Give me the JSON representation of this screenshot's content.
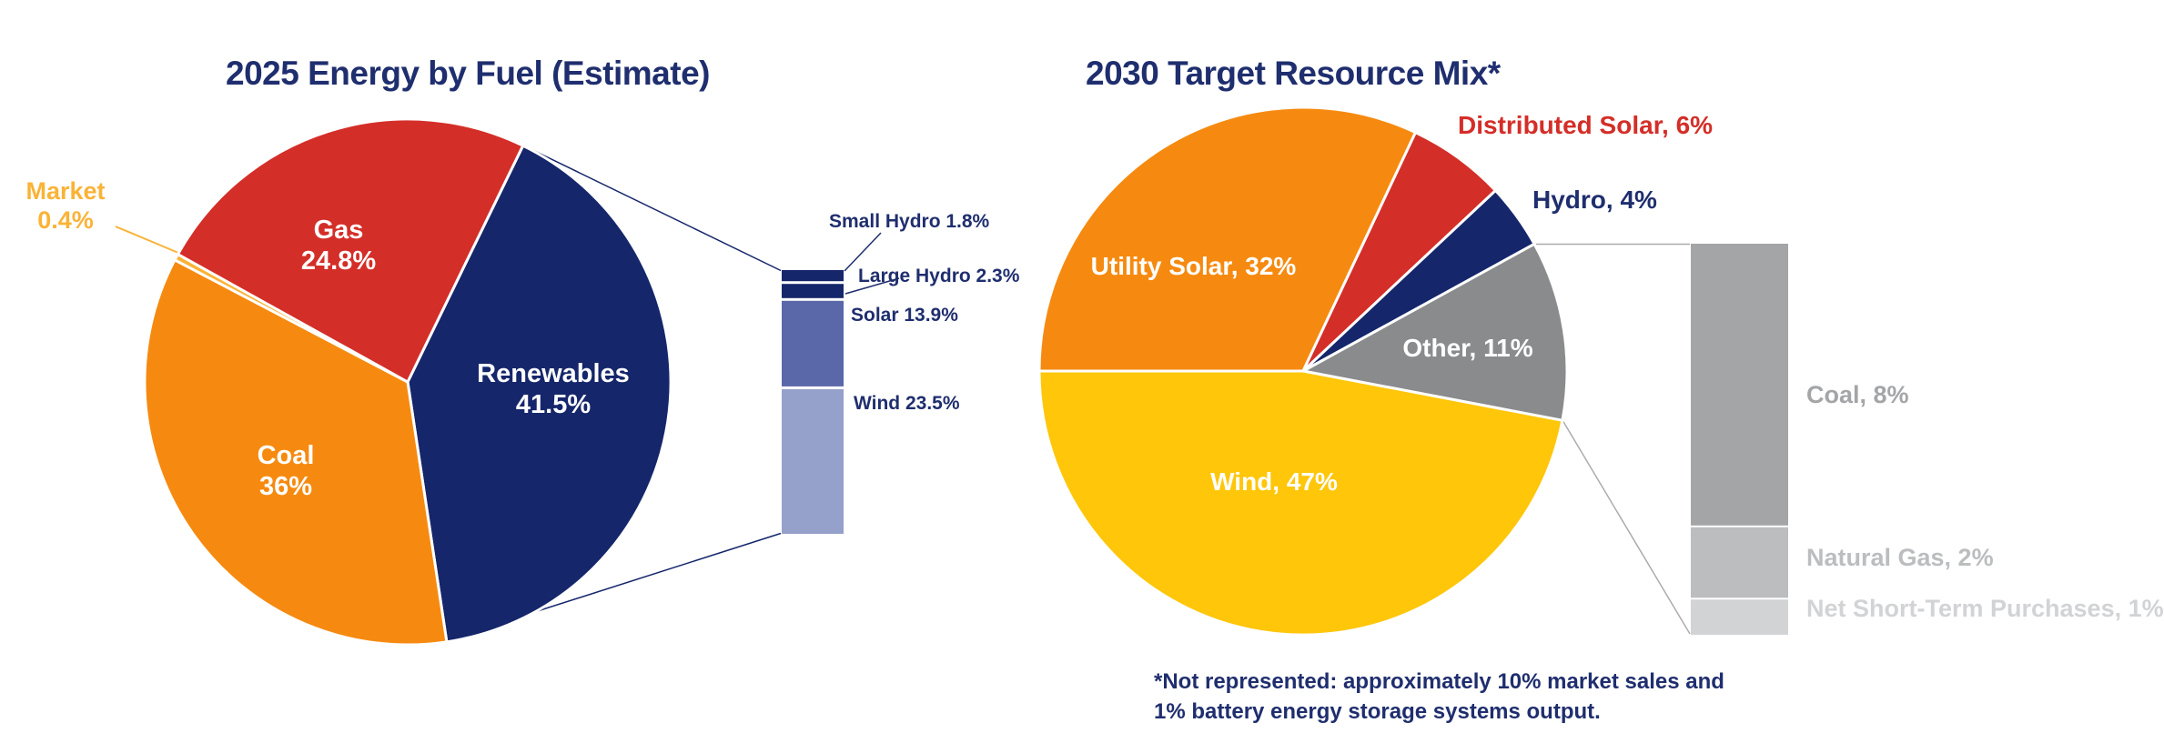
{
  "colors": {
    "navy_text": "#1F2E6E",
    "navy_slice": "#15266B",
    "red": "#D42E28",
    "orange": "#F68A10",
    "market_yellow": "#FAB337",
    "wind_yellow": "#FFC60A",
    "gray_slice": "#8A8B8D",
    "solar_bar_blue": "#5A67A9",
    "wind_bar_blue": "#95A0CB",
    "coal_gray": "#A4A5A7",
    "natural_gas_gray": "#BBBDBF",
    "net_purchases_gray": "#D2D3D5",
    "background": "#FFFFFF"
  },
  "footnote": {
    "line1": "*Not represented: approximately 10% market sales and",
    "line2": "1% battery energy storage systems output."
  },
  "chart_data": [
    {
      "id": "energy-2025-pie",
      "type": "pie",
      "title": "2025 Energy by Fuel (Estimate)",
      "start_angle_deg": 26,
      "legend_position": "labels-on-slices",
      "slices": [
        {
          "name": "Renewables",
          "value": 41.5,
          "value_label": "41.5%",
          "color": "#15266B",
          "text_color": "#FFFFFF"
        },
        {
          "name": "Coal",
          "value": 36,
          "value_label": "36%",
          "color": "#F68A10",
          "text_color": "#FFFFFF"
        },
        {
          "name": "Market",
          "value": 0.4,
          "value_label": "0.4%",
          "color": "#FAB337",
          "text_color": "#FAB337"
        },
        {
          "name": "Gas",
          "value": 24.8,
          "value_label": "24.8%",
          "color": "#D42E28",
          "text_color": "#FFFFFF"
        }
      ]
    },
    {
      "id": "renewables-breakdown-bar",
      "type": "bar",
      "subtype": "stacked-breakdown",
      "parent_slice": "Renewables",
      "segments": [
        {
          "name": "Small Hydro",
          "value": 1.8,
          "label": "Small Hydro 1.8%",
          "color": "#15266B"
        },
        {
          "name": "Large Hydro",
          "value": 2.3,
          "label": "Large Hydro 2.3%",
          "color": "#15266B"
        },
        {
          "name": "Solar",
          "value": 13.9,
          "label": "Solar 13.9%",
          "color": "#5A67A9"
        },
        {
          "name": "Wind",
          "value": 23.5,
          "label": "Wind 23.5%",
          "color": "#95A0CB"
        }
      ]
    },
    {
      "id": "target-2030-pie",
      "type": "pie",
      "title": "2030 Target Resource Mix*",
      "start_angle_deg": 270,
      "legend_position": "labels-on-slices",
      "slices": [
        {
          "name": "Utility Solar",
          "value": 32,
          "label": "Utility Solar, 32%",
          "color": "#F68A10",
          "text_color": "#FFFFFF"
        },
        {
          "name": "Distributed Solar",
          "value": 6,
          "label": "Distributed Solar, 6%",
          "color": "#D42E28",
          "text_color": "#D42E28"
        },
        {
          "name": "Hydro",
          "value": 4,
          "label": "Hydro, 4%",
          "color": "#15266B",
          "text_color": "#1F2E6E"
        },
        {
          "name": "Other",
          "value": 11,
          "label": "Other, 11%",
          "color": "#8A8B8D",
          "text_color": "#FFFFFF"
        },
        {
          "name": "Wind",
          "value": 47,
          "label": "Wind, 47%",
          "color": "#FFC60A",
          "text_color": "#FFFFFF"
        }
      ]
    },
    {
      "id": "other-breakdown-bar",
      "type": "bar",
      "subtype": "stacked-breakdown",
      "parent_slice": "Other",
      "segments": [
        {
          "name": "Coal",
          "value": 8,
          "label": "Coal, 8%",
          "color": "#A4A5A7"
        },
        {
          "name": "Natural Gas",
          "value": 2,
          "label": "Natural Gas, 2%",
          "color": "#BBBDBF"
        },
        {
          "name": "Net Short-Term Purchases",
          "value": 1,
          "label": "Net Short-Term Purchases, 1%",
          "color": "#D2D3D5"
        }
      ]
    }
  ]
}
